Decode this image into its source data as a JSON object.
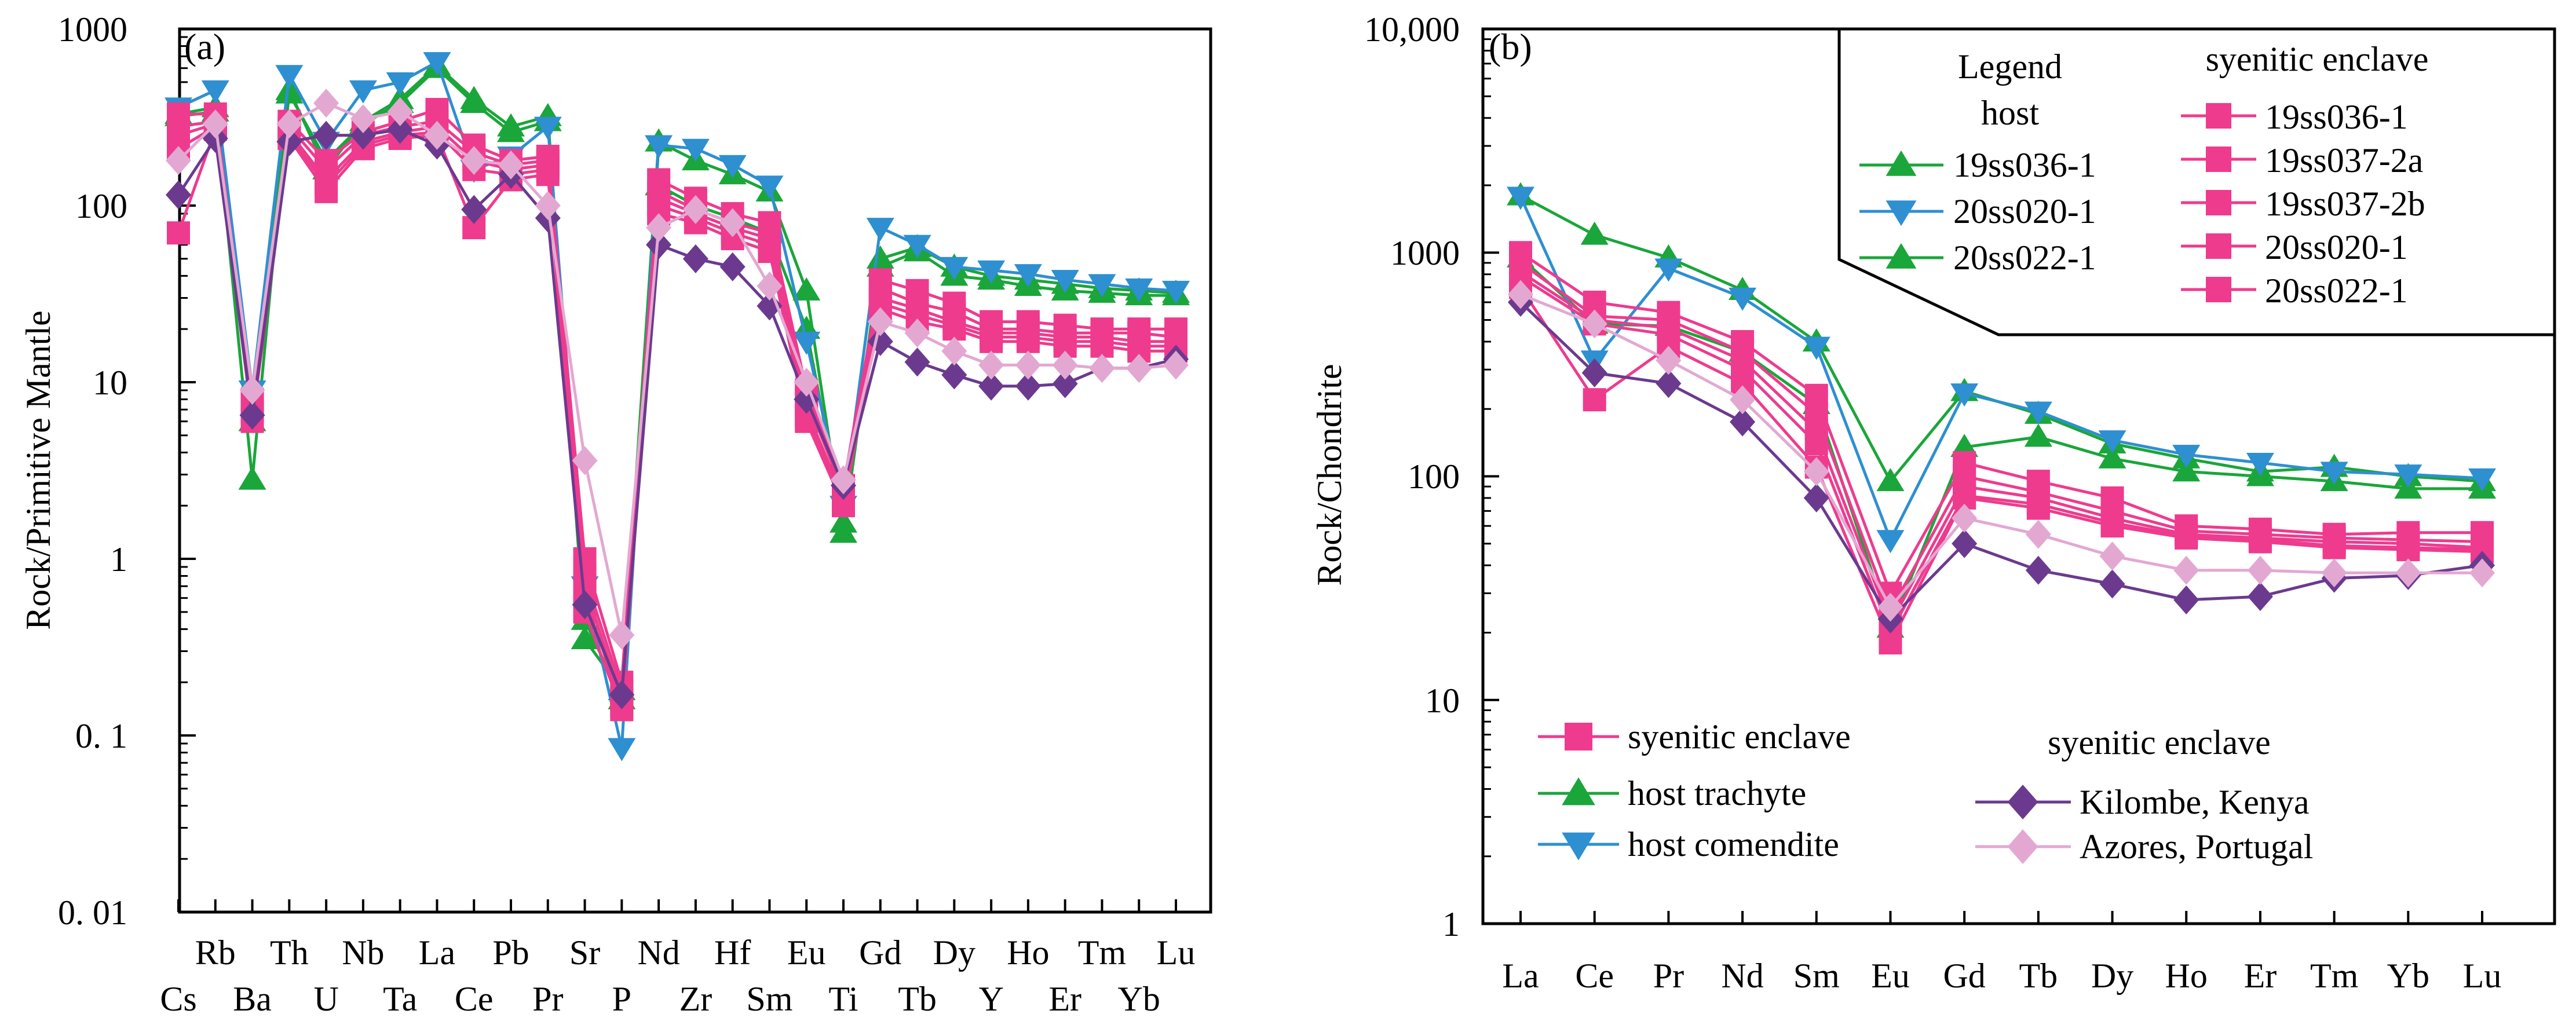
{
  "colors": {
    "enclave": "#ee3b8e",
    "trachyte": "#1aa63a",
    "comendite": "#2e8fd1",
    "kilombe": "#6b3a8f",
    "azores": "#e3a8d2",
    "axis": "#000000"
  },
  "panel_a": {
    "panel_label": "(a)",
    "ylabel": "Rock/Primitive Mantle",
    "yticks": [
      "0. 01",
      "0. 1",
      "1",
      "10",
      "100",
      "1000"
    ]
  },
  "panel_b": {
    "panel_label": "(b)",
    "ylabel": "Rock/Chondrite",
    "yticks": [
      "1",
      "10",
      "100",
      "1000",
      "10,000"
    ],
    "legend_box": {
      "title_line1": "Legend",
      "title_line2": "host",
      "right_title": "syenitic enclave",
      "host_items": [
        "19ss036-1",
        "20ss020-1",
        "20ss022-1"
      ],
      "enclave_items": [
        "19ss036-1",
        "19ss037-2a",
        "19ss037-2b",
        "20ss020-1",
        "20ss022-1"
      ]
    },
    "legend_lower": {
      "left_items": [
        "syenitic enclave",
        "host trachyte",
        "host comendite"
      ],
      "right_title": "syenitic enclave",
      "right_items": [
        "Kilombe, Kenya",
        "Azores, Portugal"
      ]
    }
  },
  "chart_data": [
    {
      "type": "line",
      "title": "(a)",
      "xlabel": "",
      "ylabel": "Rock/Primitive Mantle",
      "yscale": "log",
      "ylim": [
        0.01,
        1000
      ],
      "categories": [
        "Cs",
        "Rb",
        "Ba",
        "Th",
        "U",
        "Nb",
        "Ta",
        "La",
        "Ce",
        "Pb",
        "Pr",
        "Sr",
        "P",
        "Nd",
        "Zr",
        "Hf",
        "Sm",
        "Eu",
        "Ti",
        "Gd",
        "Tb",
        "Dy",
        "Y",
        "Ho",
        "Er",
        "Tm",
        "Yb",
        "Lu"
      ],
      "series": [
        {
          "name": "host 19ss036-1 (trachyte)",
          "group": "trachyte",
          "marker": "triangle-up",
          "values": [
            330,
            360,
            2.8,
            450,
            160,
            300,
            400,
            620,
            400,
            280,
            320,
            0.35,
            0.18,
            230,
            180,
            150,
            120,
            33,
            1.4,
            45,
            55,
            40,
            38,
            35,
            33,
            32,
            31,
            31
          ]
        },
        {
          "name": "host 20ss022-1 (trachyte)",
          "group": "trachyte",
          "marker": "triangle-up",
          "values": [
            320,
            340,
            6,
            430,
            180,
            290,
            380,
            600,
            380,
            260,
            300,
            0.45,
            0.16,
            130,
            100,
            85,
            70,
            20,
            1.6,
            50,
            58,
            45,
            40,
            38,
            36,
            34,
            33,
            32
          ]
        },
        {
          "name": "host 20ss020-1 (comendite)",
          "group": "comendite",
          "marker": "triangle-down",
          "values": [
            360,
            450,
            9,
            550,
            230,
            450,
            500,
            650,
            160,
            190,
            280,
            0.7,
            0.085,
            220,
            210,
            170,
            130,
            17,
            2,
            75,
            60,
            45,
            43,
            41,
            38,
            36,
            34,
            33
          ]
        },
        {
          "name": "enclave 19ss036-1",
          "group": "enclave",
          "marker": "square",
          "values": [
            330,
            330,
            8,
            300,
            180,
            260,
            300,
            350,
            220,
            180,
            190,
            1.0,
            0.2,
            140,
            110,
            90,
            80,
            9,
            2.6,
            38,
            33,
            28,
            22,
            22,
            21,
            20,
            20,
            20
          ]
        },
        {
          "name": "enclave 19ss037-2a",
          "group": "enclave",
          "marker": "square",
          "values": [
            280,
            300,
            8,
            280,
            160,
            250,
            280,
            300,
            200,
            170,
            180,
            0.8,
            0.18,
            120,
            95,
            80,
            70,
            8,
            2.4,
            34,
            28,
            25,
            20,
            20,
            19,
            19,
            19,
            18
          ]
        },
        {
          "name": "enclave 19ss037-2b",
          "group": "enclave",
          "marker": "square",
          "values": [
            250,
            290,
            7,
            260,
            140,
            230,
            260,
            280,
            180,
            160,
            170,
            0.7,
            0.16,
            110,
            90,
            75,
            65,
            7,
            2.2,
            30,
            26,
            22,
            19,
            19,
            18,
            18,
            17,
            17
          ]
        },
        {
          "name": "enclave 20ss020-1",
          "group": "enclave",
          "marker": "square",
          "values": [
            210,
            280,
            7,
            250,
            130,
            220,
            250,
            260,
            160,
            150,
            160,
            0.6,
            0.15,
            100,
            85,
            70,
            60,
            6.5,
            2.1,
            28,
            24,
            21,
            18,
            18,
            17,
            17,
            16,
            16
          ]
        },
        {
          "name": "enclave 20ss022-1",
          "group": "enclave",
          "marker": "square",
          "values": [
            70,
            270,
            6,
            240,
            120,
            210,
            240,
            250,
            75,
            140,
            150,
            0.5,
            0.14,
            90,
            80,
            65,
            55,
            6,
            2,
            26,
            22,
            20,
            17,
            17,
            16,
            16,
            15,
            15
          ]
        },
        {
          "name": "Kilombe, Kenya",
          "group": "kilombe",
          "marker": "diamond",
          "values": [
            115,
            240,
            6.5,
            230,
            250,
            250,
            270,
            220,
            95,
            150,
            85,
            0.55,
            0.17,
            60,
            50,
            45,
            27,
            8,
            2.6,
            17,
            13,
            11,
            9.5,
            9.5,
            9.8,
            12,
            12,
            13.5
          ]
        },
        {
          "name": "Azores, Portugal",
          "group": "azores",
          "marker": "diamond",
          "values": [
            180,
            290,
            9,
            290,
            380,
            310,
            340,
            250,
            180,
            170,
            100,
            3.6,
            0.37,
            75,
            95,
            80,
            35,
            10,
            2.8,
            22,
            19,
            15,
            12.5,
            12.5,
            12.5,
            12,
            12,
            12.5
          ]
        }
      ]
    },
    {
      "type": "line",
      "title": "(b)",
      "xlabel": "",
      "ylabel": "Rock/Chondrite",
      "yscale": "log",
      "ylim": [
        1,
        10000
      ],
      "categories": [
        "La",
        "Ce",
        "Pr",
        "Nd",
        "Sm",
        "Eu",
        "Gd",
        "Tb",
        "Dy",
        "Ho",
        "Er",
        "Tm",
        "Yb",
        "Lu"
      ],
      "series": [
        {
          "name": "host 19ss036-1 (trachyte)",
          "group": "trachyte",
          "marker": "triangle-up",
          "values": [
            1800,
            1200,
            950,
            680,
            400,
            95,
            240,
            190,
            140,
            120,
            105,
            110,
            100,
            95
          ]
        },
        {
          "name": "host 20ss022-1 (trachyte)",
          "group": "trachyte",
          "marker": "triangle-up",
          "values": [
            950,
            480,
            470,
            360,
            210,
            21,
            135,
            150,
            120,
            105,
            100,
            95,
            88,
            88
          ]
        },
        {
          "name": "host 20ss020-1 (comendite)",
          "group": "comendite",
          "marker": "triangle-down",
          "values": [
            1780,
            330,
            850,
            630,
            380,
            52,
            235,
            195,
            145,
            125,
            115,
            105,
            102,
            98
          ]
        },
        {
          "name": "enclave 19ss036-1",
          "group": "enclave",
          "marker": "square",
          "values": [
            1000,
            600,
            540,
            400,
            230,
            30,
            115,
            95,
            80,
            60,
            58,
            55,
            56,
            56
          ]
        },
        {
          "name": "enclave 19ss037-2a",
          "group": "enclave",
          "marker": "square",
          "values": [
            900,
            520,
            500,
            360,
            190,
            25,
            100,
            85,
            70,
            57,
            55,
            53,
            52,
            51
          ]
        },
        {
          "name": "enclave 19ss037-2b",
          "group": "enclave",
          "marker": "square",
          "values": [
            820,
            500,
            460,
            330,
            160,
            22,
            90,
            80,
            65,
            55,
            53,
            51,
            50,
            48
          ]
        },
        {
          "name": "enclave 20ss020-1",
          "group": "enclave",
          "marker": "square",
          "values": [
            780,
            480,
            430,
            300,
            140,
            20,
            82,
            75,
            62,
            54,
            52,
            49,
            48,
            47
          ]
        },
        {
          "name": "enclave 20ss022-1",
          "group": "enclave",
          "marker": "square",
          "values": [
            700,
            220,
            380,
            260,
            110,
            18,
            80,
            72,
            60,
            53,
            51,
            48,
            47,
            46
          ]
        },
        {
          "name": "Kilombe, Kenya",
          "group": "kilombe",
          "marker": "diamond",
          "values": [
            600,
            290,
            260,
            175,
            80,
            23,
            50,
            38,
            33,
            28,
            29,
            35,
            36,
            40
          ]
        },
        {
          "name": "Azores, Portugal",
          "group": "azores",
          "marker": "diamond",
          "values": [
            650,
            480,
            330,
            220,
            105,
            26,
            65,
            55,
            44,
            38,
            38,
            37,
            37,
            37
          ]
        }
      ]
    }
  ]
}
